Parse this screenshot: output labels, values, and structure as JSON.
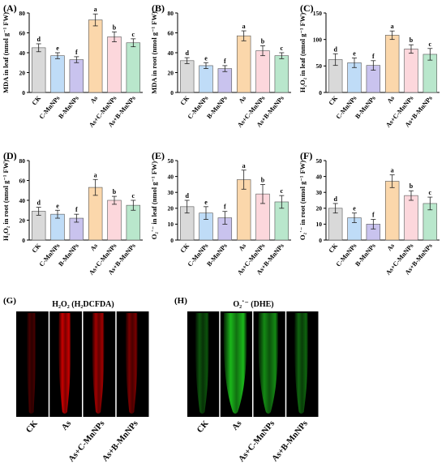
{
  "colors": {
    "bars": [
      "#d9d9d9",
      "#bfdcf7",
      "#c9c3ee",
      "#fbd7ab",
      "#fcd7dc",
      "#b9e7cc"
    ],
    "bar_stroke": "#555555",
    "h2o2_stain": "#e00000",
    "o2_stain": "#1ecc1e",
    "micrograph_bg": "#000000"
  },
  "chart_data": [
    {
      "type": "bar",
      "panel_label": "(A)",
      "ylabel": "MDA in leaf (nmol g⁻¹ FW)",
      "categories": [
        "CK",
        "C-MnNPs",
        "B-MnNPs",
        "As",
        "As+C-MnNPs",
        "As+B-MnNPs"
      ],
      "values": [
        45,
        37,
        33,
        73,
        56,
        50
      ],
      "errors": [
        4,
        3,
        3,
        6,
        5,
        4
      ],
      "letters": [
        "d",
        "e",
        "f",
        "a",
        "b",
        "c"
      ],
      "yticks": [
        0,
        20,
        40,
        60,
        80
      ],
      "ylim": [
        0,
        80
      ]
    },
    {
      "type": "bar",
      "panel_label": "(B)",
      "ylabel": "MDA in root (nmol g⁻¹ FW)",
      "categories": [
        "CK",
        "C-MnNPs",
        "B-MnNPs",
        "As",
        "As+C-MnNPs",
        "As+B-MnNPs"
      ],
      "values": [
        32,
        27,
        24,
        57,
        42,
        37
      ],
      "errors": [
        3,
        3,
        3,
        5,
        5,
        3
      ],
      "letters": [
        "d",
        "e",
        "f",
        "a",
        "b",
        "c"
      ],
      "yticks": [
        0,
        20,
        40,
        60,
        80
      ],
      "ylim": [
        0,
        80
      ]
    },
    {
      "type": "bar",
      "panel_label": "(C)",
      "ylabel": "H₂O₂ in leaf (nmol g⁻¹ FW)",
      "categories": [
        "CK",
        "C-MnNPs",
        "B-MnNPs",
        "As",
        "As+C-MnNPs",
        "As+B-MnNPs"
      ],
      "values": [
        62,
        56,
        51,
        108,
        82,
        72
      ],
      "errors": [
        11,
        9,
        9,
        8,
        8,
        11
      ],
      "letters": [
        "d",
        "e",
        "f",
        "a",
        "b",
        "c"
      ],
      "yticks": [
        0,
        50,
        100,
        150
      ],
      "ylim": [
        0,
        150
      ]
    },
    {
      "type": "bar",
      "panel_label": "(D)",
      "ylabel": "H₂O₂ in root (nmol g⁻¹ FW)",
      "categories": [
        "CK",
        "C-MnNPs",
        "B-MnNPs",
        "As",
        "As+C-MnNPs",
        "As+B-MnNPs"
      ],
      "values": [
        29,
        26,
        22,
        53,
        40,
        35
      ],
      "errors": [
        4,
        4,
        4,
        8,
        4,
        5
      ],
      "letters": [
        "d",
        "e",
        "f",
        "a",
        "b",
        "c"
      ],
      "yticks": [
        0,
        20,
        40,
        60,
        80
      ],
      "ylim": [
        0,
        80
      ]
    },
    {
      "type": "bar",
      "panel_label": "(E)",
      "ylabel": "O₂˙⁻ in leaf (nmol g⁻¹ FW)",
      "categories": [
        "CK",
        "C-MnNPs",
        "B-MnNPs",
        "As",
        "As+C-MnNPs",
        "As+B-MnNPs"
      ],
      "values": [
        21,
        17,
        14,
        38,
        29,
        24
      ],
      "errors": [
        4,
        4,
        4,
        6,
        6,
        4
      ],
      "letters": [
        "d",
        "e",
        "f",
        "a",
        "b",
        "c"
      ],
      "yticks": [
        0,
        10,
        20,
        30,
        40,
        50
      ],
      "ylim": [
        0,
        50
      ]
    },
    {
      "type": "bar",
      "panel_label": "(F)",
      "ylabel": "O₂˙⁻ in root (nmol g⁻¹ FW)",
      "categories": [
        "CK",
        "C-MnNPs",
        "B-MnNPs",
        "As",
        "As+C-MnNPs",
        "As+B-MnNPs"
      ],
      "values": [
        20,
        14,
        10,
        37,
        28,
        23
      ],
      "errors": [
        3,
        3,
        3,
        4,
        3,
        4
      ],
      "letters": [
        "d",
        "e",
        "f",
        "a",
        "b",
        "c"
      ],
      "yticks": [
        0,
        10,
        20,
        30,
        40,
        50
      ],
      "ylim": [
        0,
        50
      ]
    }
  ],
  "micrographs": [
    {
      "panel_label": "(G)",
      "title": "H₂O₂ (H₂DCFDA)",
      "stain": "h2o2",
      "labels": [
        "CK",
        "As",
        "As+C-MnNPs",
        "As+B-MnNPs"
      ],
      "intensity": [
        0.35,
        1.0,
        0.8,
        0.6
      ]
    },
    {
      "panel_label": "(H)",
      "title": "O₂˙⁻ (DHE)",
      "stain": "o2",
      "labels": [
        "CK",
        "As",
        "As+C-MnNPs",
        "As+B-MnNPs"
      ],
      "intensity": [
        0.45,
        1.0,
        0.75,
        0.55
      ]
    }
  ]
}
